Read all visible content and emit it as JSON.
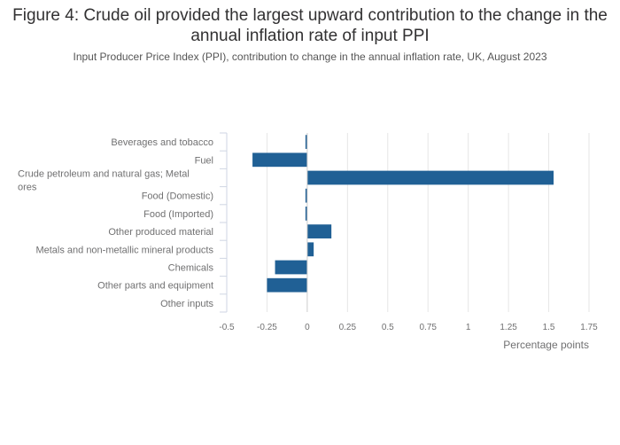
{
  "chart_data": {
    "type": "bar",
    "orientation": "horizontal",
    "title": "Figure 4: Crude oil provided the largest upward contribution to the change in the annual inflation rate of input PPI",
    "subtitle": "Input Producer Price Index (PPI), contribution to change in the annual inflation rate, UK, August 2023",
    "xlabel": "Percentage points",
    "xlim": [
      -0.5,
      1.75
    ],
    "xticks": [
      "-0.5",
      "-0.25",
      "0",
      "0.25",
      "0.5",
      "0.75",
      "1",
      "1.25",
      "1.5",
      "1.75"
    ],
    "xtick_values": [
      -0.5,
      -0.25,
      0,
      0.25,
      0.5,
      0.75,
      1,
      1.25,
      1.5,
      1.75
    ],
    "categories": [
      "Beverages and tobacco",
      "Fuel",
      "Crude petroleum and natural gas; Metal ores",
      "Food (Domestic)",
      "Food (Imported)",
      "Other produced material",
      "Metals and non-metallic mineral products",
      "Chemicals",
      "Other parts and equipment",
      "Other inputs"
    ],
    "values": [
      -0.01,
      -0.34,
      1.53,
      -0.01,
      -0.01,
      0.15,
      0.04,
      -0.2,
      -0.25,
      0.0
    ],
    "grid": true,
    "legend": "none",
    "bar_color": "#206095"
  }
}
